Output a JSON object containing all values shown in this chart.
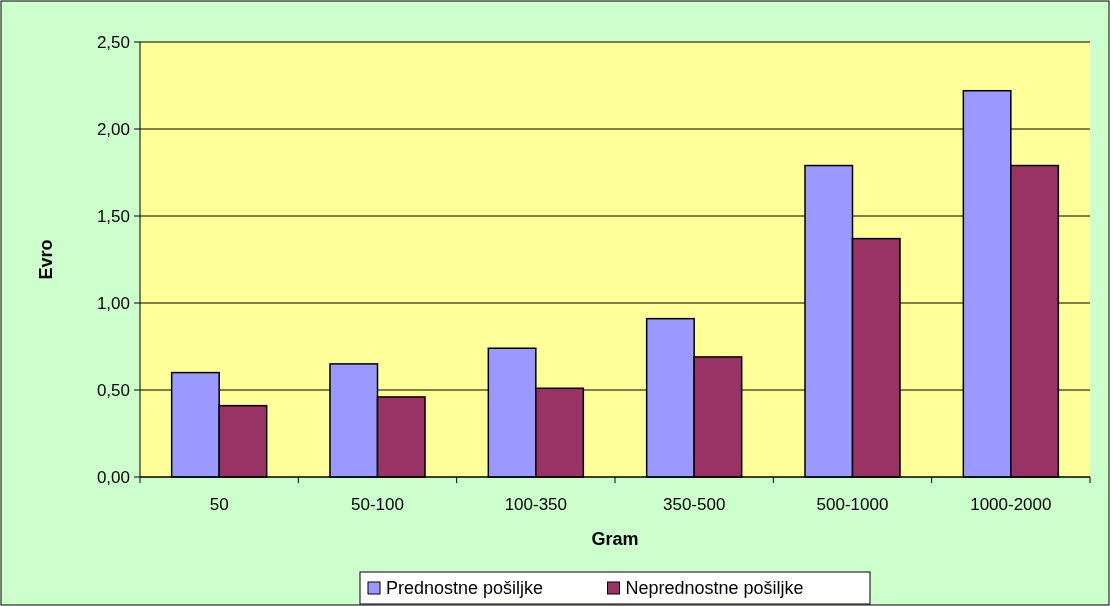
{
  "chart_data": {
    "type": "bar",
    "xlabel": "Gram",
    "ylabel": "Evro",
    "categories": [
      "50",
      "50-100",
      "100-350",
      "350-500",
      "500-1000",
      "1000-2000"
    ],
    "series": [
      {
        "name": "Prednostne pošiljke",
        "color": "#9999ff",
        "values": [
          0.6,
          0.65,
          0.74,
          0.91,
          1.79,
          2.22
        ]
      },
      {
        "name": "Neprednostne pošiljke",
        "color": "#993366",
        "values": [
          0.41,
          0.46,
          0.51,
          0.69,
          1.37,
          1.79
        ]
      }
    ],
    "ylim": [
      0,
      2.5
    ],
    "yticks": [
      {
        "value": 0,
        "label": "0,00"
      },
      {
        "value": 0.5,
        "label": "0,50"
      },
      {
        "value": 1,
        "label": "1,00"
      },
      {
        "value": 1.5,
        "label": "1,50"
      },
      {
        "value": 2,
        "label": "2,00"
      },
      {
        "value": 2.5,
        "label": "2,50"
      }
    ],
    "grid": "y",
    "legend": "bottom"
  }
}
